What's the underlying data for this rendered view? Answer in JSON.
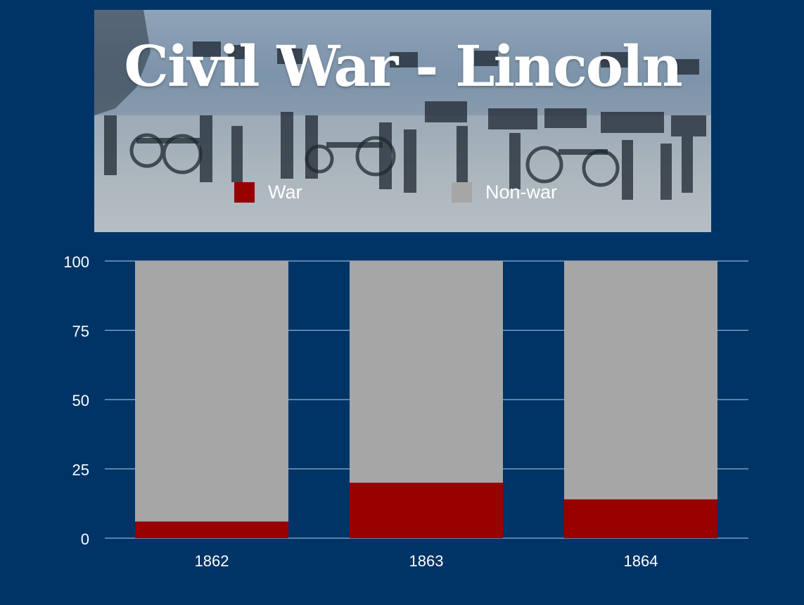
{
  "slide": {
    "title": "Civil War - Lincoln"
  },
  "colors": {
    "background": "#003466",
    "war": "#990000",
    "non_war": "#a6a6a6",
    "gridline": "#8fb0d0"
  },
  "legend": [
    {
      "label": "War",
      "color": "#990000"
    },
    {
      "label": "Non-war",
      "color": "#a6a6a6"
    }
  ],
  "chart_data": {
    "type": "bar",
    "stacked": true,
    "categories": [
      "1862",
      "1863",
      "1864"
    ],
    "series": [
      {
        "name": "War",
        "values": [
          6,
          20,
          14
        ]
      },
      {
        "name": "Non-war",
        "values": [
          94,
          80,
          86
        ]
      }
    ],
    "yticks": [
      "0",
      "25",
      "50",
      "75",
      "100"
    ],
    "ylim": [
      0,
      100
    ],
    "grid": true,
    "legend_position": "top"
  }
}
